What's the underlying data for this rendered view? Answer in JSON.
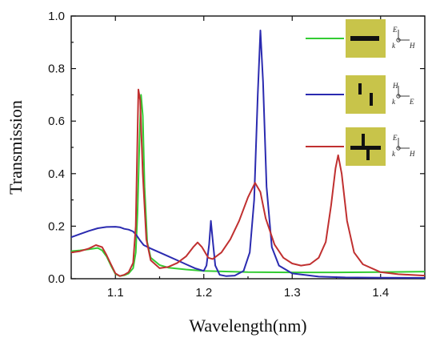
{
  "chart_data": {
    "type": "line",
    "title": "",
    "xlabel": "Wavelength(nm)",
    "ylabel": "Transmission",
    "xlim": [
      1.05,
      1.45
    ],
    "ylim": [
      0.0,
      1.0
    ],
    "x_ticks": [
      1.1,
      1.2,
      1.3,
      1.4
    ],
    "x_tick_labels": [
      "1.1",
      "1.2",
      "1.3",
      "1.4"
    ],
    "y_ticks": [
      0.0,
      0.2,
      0.4,
      0.6,
      0.8,
      1.0
    ],
    "y_tick_labels": [
      "0.0",
      "0.2",
      "0.4",
      "0.6",
      "0.8",
      "1.0"
    ],
    "grid": false,
    "legend_position": "right",
    "series": [
      {
        "color": "#33cc33",
        "legend_icon": "single-horizontal-bar-icon",
        "legend_axes": {
          "top": "E",
          "right": "H",
          "origin": "k"
        },
        "points": [
          [
            1.05,
            0.105
          ],
          [
            1.06,
            0.108
          ],
          [
            1.07,
            0.112
          ],
          [
            1.08,
            0.117
          ],
          [
            1.085,
            0.108
          ],
          [
            1.09,
            0.085
          ],
          [
            1.095,
            0.05
          ],
          [
            1.1,
            0.018
          ],
          [
            1.105,
            0.01
          ],
          [
            1.11,
            0.013
          ],
          [
            1.115,
            0.02
          ],
          [
            1.12,
            0.04
          ],
          [
            1.123,
            0.1
          ],
          [
            1.125,
            0.25
          ],
          [
            1.127,
            0.5
          ],
          [
            1.129,
            0.7
          ],
          [
            1.131,
            0.62
          ],
          [
            1.133,
            0.35
          ],
          [
            1.136,
            0.14
          ],
          [
            1.14,
            0.08
          ],
          [
            1.15,
            0.052
          ],
          [
            1.16,
            0.042
          ],
          [
            1.18,
            0.035
          ],
          [
            1.2,
            0.03
          ],
          [
            1.25,
            0.025
          ],
          [
            1.3,
            0.024
          ],
          [
            1.35,
            0.024
          ],
          [
            1.4,
            0.025
          ],
          [
            1.45,
            0.027
          ]
        ]
      },
      {
        "color": "#2b2bb0",
        "legend_icon": "offset-vertical-bars-icon",
        "legend_axes": {
          "top": "H",
          "right": "E",
          "origin": "k"
        },
        "points": [
          [
            1.05,
            0.158
          ],
          [
            1.06,
            0.17
          ],
          [
            1.07,
            0.182
          ],
          [
            1.08,
            0.192
          ],
          [
            1.09,
            0.197
          ],
          [
            1.1,
            0.198
          ],
          [
            1.105,
            0.196
          ],
          [
            1.11,
            0.19
          ],
          [
            1.115,
            0.187
          ],
          [
            1.12,
            0.18
          ],
          [
            1.124,
            0.165
          ],
          [
            1.128,
            0.145
          ],
          [
            1.132,
            0.128
          ],
          [
            1.14,
            0.115
          ],
          [
            1.15,
            0.1
          ],
          [
            1.16,
            0.085
          ],
          [
            1.17,
            0.07
          ],
          [
            1.18,
            0.055
          ],
          [
            1.19,
            0.04
          ],
          [
            1.2,
            0.03
          ],
          [
            1.203,
            0.05
          ],
          [
            1.206,
            0.13
          ],
          [
            1.208,
            0.22
          ],
          [
            1.21,
            0.15
          ],
          [
            1.213,
            0.05
          ],
          [
            1.218,
            0.015
          ],
          [
            1.225,
            0.01
          ],
          [
            1.235,
            0.012
          ],
          [
            1.245,
            0.03
          ],
          [
            1.252,
            0.1
          ],
          [
            1.257,
            0.3
          ],
          [
            1.261,
            0.7
          ],
          [
            1.264,
            0.945
          ],
          [
            1.267,
            0.75
          ],
          [
            1.271,
            0.35
          ],
          [
            1.277,
            0.12
          ],
          [
            1.285,
            0.05
          ],
          [
            1.3,
            0.02
          ],
          [
            1.33,
            0.008
          ],
          [
            1.36,
            0.005
          ],
          [
            1.4,
            0.004
          ],
          [
            1.45,
            0.003
          ]
        ]
      },
      {
        "color": "#c03030",
        "legend_icon": "t-shaped-bars-icon",
        "legend_axes": {
          "top": "E",
          "right": "H",
          "origin": "k"
        },
        "points": [
          [
            1.05,
            0.1
          ],
          [
            1.06,
            0.105
          ],
          [
            1.07,
            0.115
          ],
          [
            1.078,
            0.128
          ],
          [
            1.085,
            0.12
          ],
          [
            1.09,
            0.09
          ],
          [
            1.095,
            0.055
          ],
          [
            1.1,
            0.02
          ],
          [
            1.105,
            0.01
          ],
          [
            1.11,
            0.015
          ],
          [
            1.115,
            0.025
          ],
          [
            1.12,
            0.06
          ],
          [
            1.123,
            0.2
          ],
          [
            1.125,
            0.55
          ],
          [
            1.126,
            0.72
          ],
          [
            1.128,
            0.68
          ],
          [
            1.131,
            0.4
          ],
          [
            1.135,
            0.15
          ],
          [
            1.14,
            0.07
          ],
          [
            1.15,
            0.04
          ],
          [
            1.16,
            0.045
          ],
          [
            1.17,
            0.06
          ],
          [
            1.18,
            0.085
          ],
          [
            1.188,
            0.12
          ],
          [
            1.193,
            0.138
          ],
          [
            1.198,
            0.12
          ],
          [
            1.205,
            0.08
          ],
          [
            1.21,
            0.075
          ],
          [
            1.22,
            0.1
          ],
          [
            1.23,
            0.15
          ],
          [
            1.24,
            0.22
          ],
          [
            1.25,
            0.31
          ],
          [
            1.258,
            0.365
          ],
          [
            1.264,
            0.33
          ],
          [
            1.27,
            0.23
          ],
          [
            1.28,
            0.13
          ],
          [
            1.29,
            0.08
          ],
          [
            1.3,
            0.058
          ],
          [
            1.31,
            0.05
          ],
          [
            1.32,
            0.055
          ],
          [
            1.33,
            0.08
          ],
          [
            1.338,
            0.14
          ],
          [
            1.344,
            0.28
          ],
          [
            1.349,
            0.42
          ],
          [
            1.352,
            0.47
          ],
          [
            1.356,
            0.4
          ],
          [
            1.362,
            0.22
          ],
          [
            1.37,
            0.1
          ],
          [
            1.38,
            0.055
          ],
          [
            1.4,
            0.025
          ],
          [
            1.42,
            0.017
          ],
          [
            1.45,
            0.012
          ]
        ]
      }
    ]
  }
}
